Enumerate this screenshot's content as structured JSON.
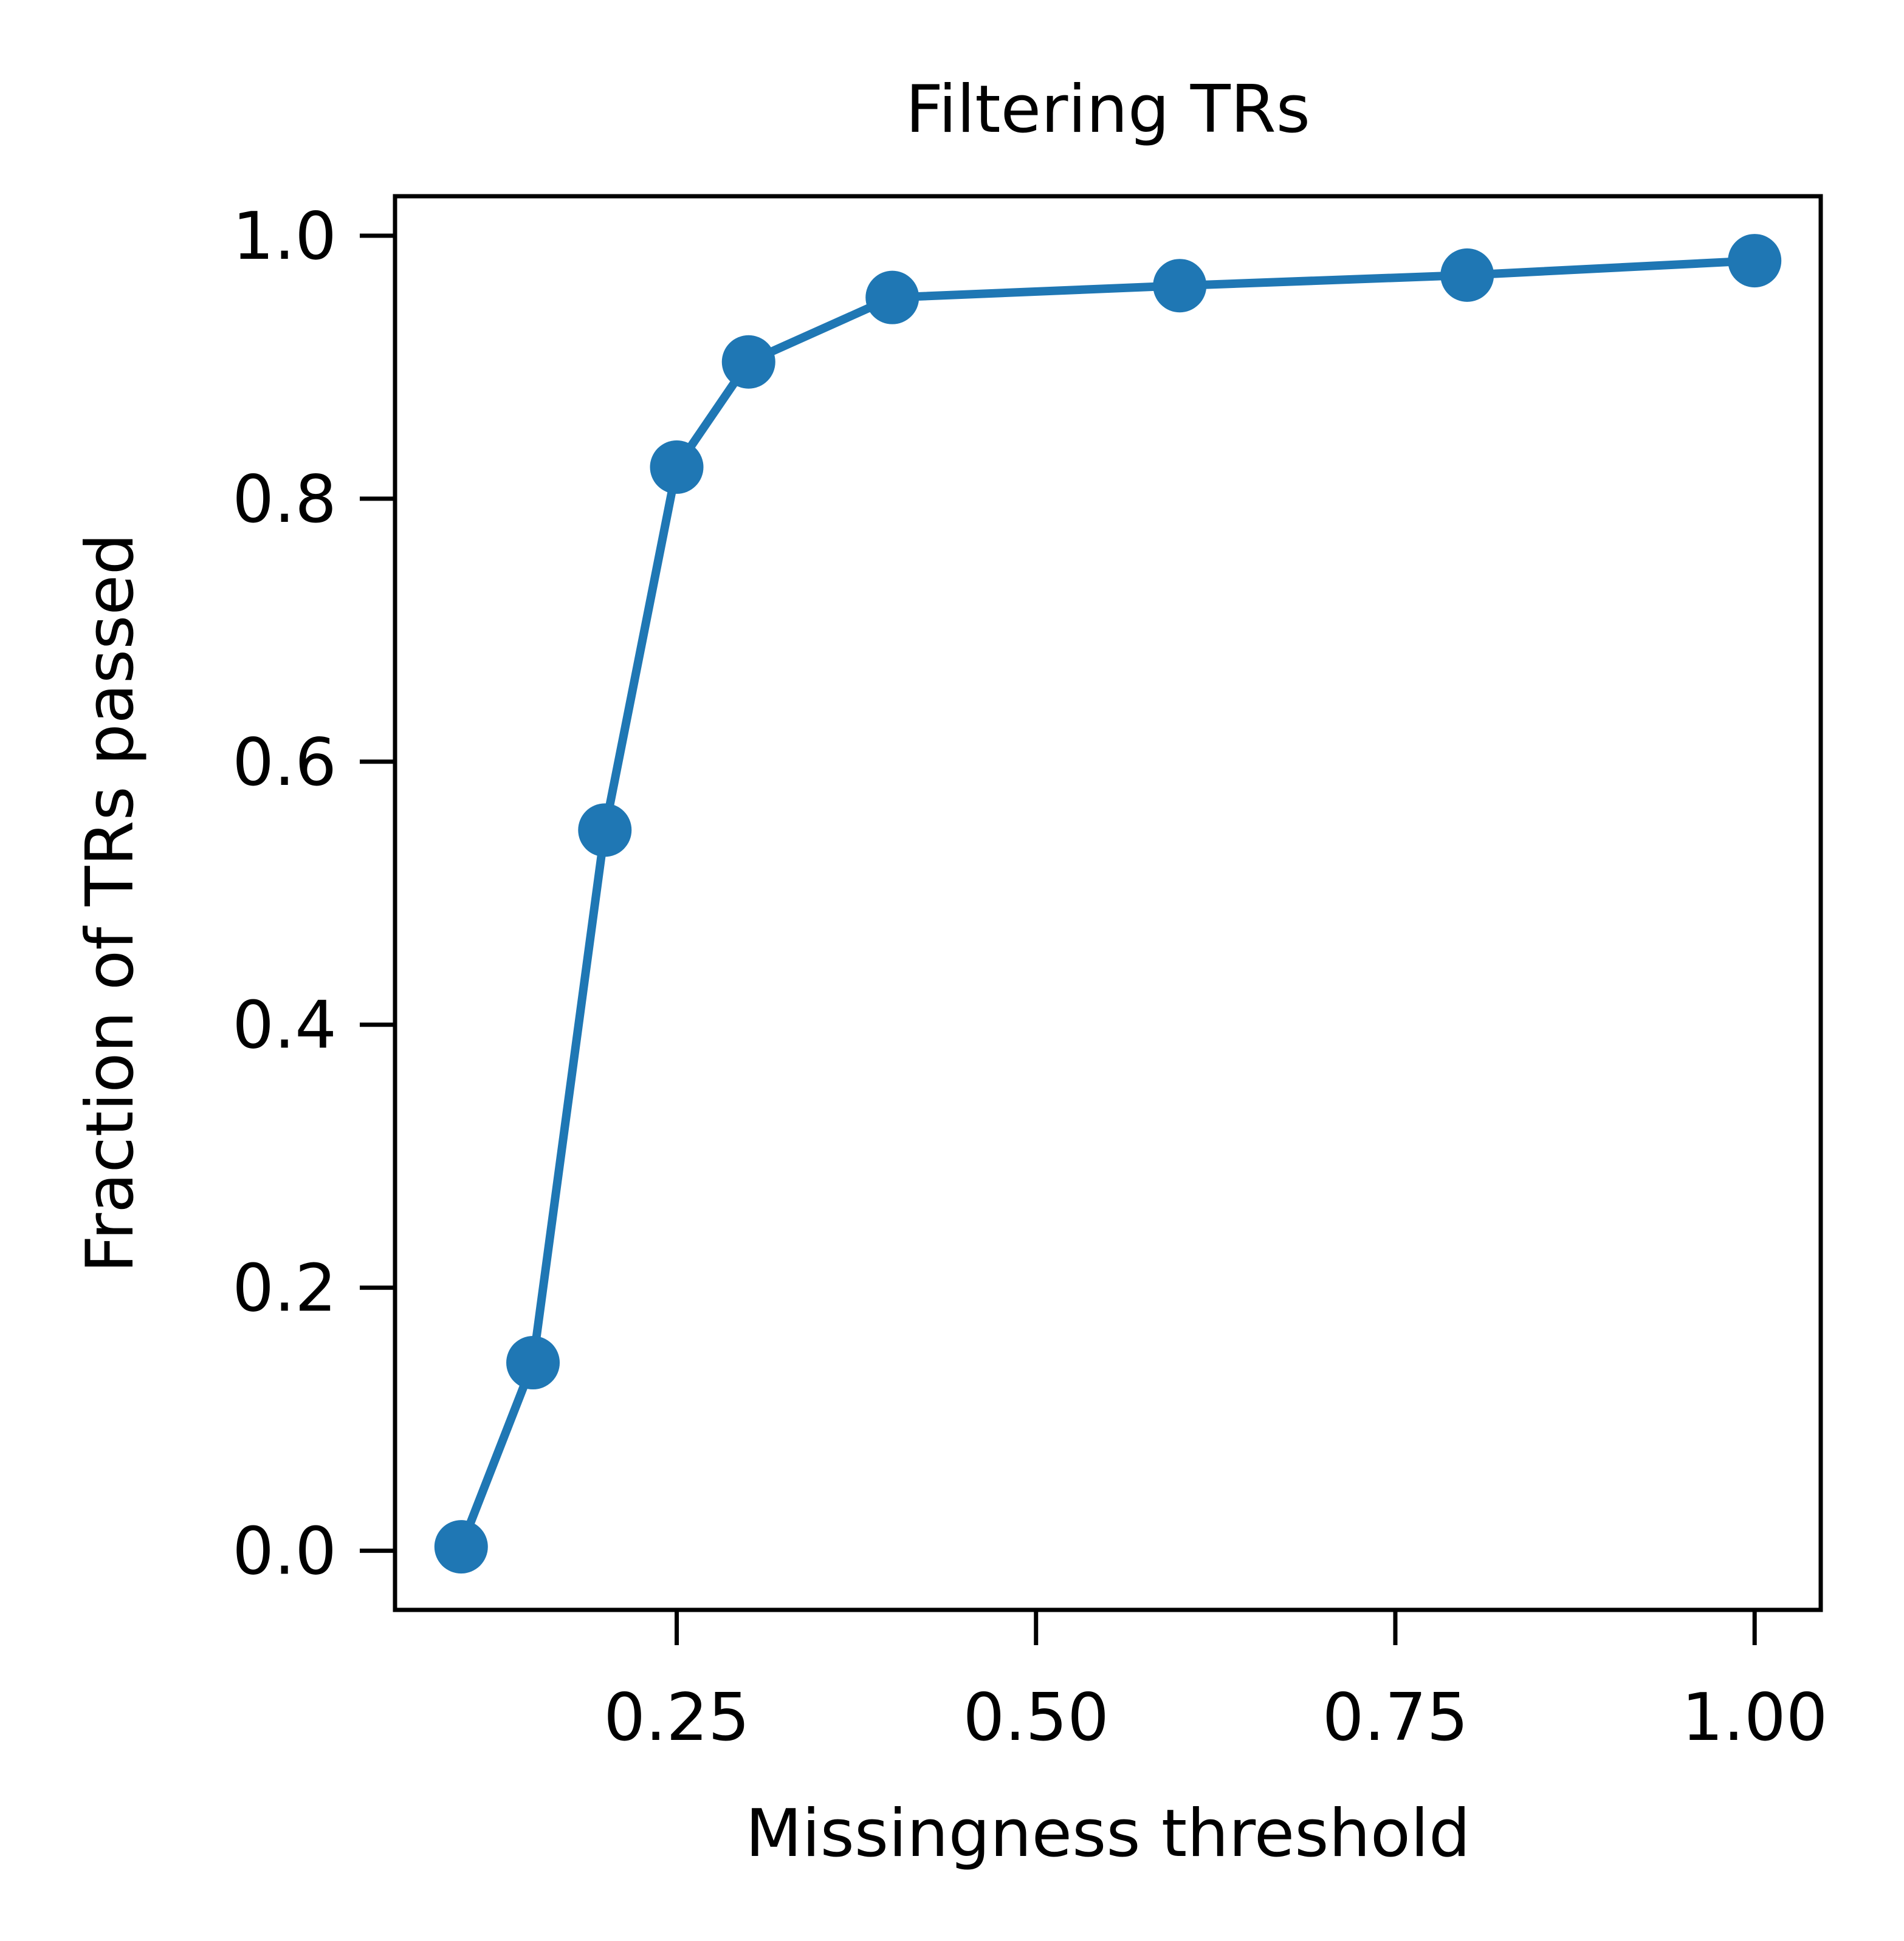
{
  "chart_data": {
    "type": "line",
    "title": "Filtering TRs",
    "xlabel": "Missingness threshold",
    "ylabel": "Fraction of TRs passed",
    "xlim": [
      0.054,
      1.046
    ],
    "ylim": [
      -0.045,
      1.03
    ],
    "x_ticks": [
      0.25,
      0.5,
      0.75,
      1.0
    ],
    "x_tick_labels": [
      "0.25",
      "0.50",
      "0.75",
      "1.00"
    ],
    "y_ticks": [
      0.0,
      0.2,
      0.4,
      0.6,
      0.8,
      1.0
    ],
    "y_tick_labels": [
      "0.0",
      "0.2",
      "0.4",
      "0.6",
      "0.8",
      "1.0"
    ],
    "grid": false,
    "series": [
      {
        "x": [
          0.1,
          0.15,
          0.2,
          0.25,
          0.3,
          0.4,
          0.6,
          0.8,
          1.0
        ],
        "y": [
          0.003,
          0.143,
          0.548,
          0.824,
          0.904,
          0.953,
          0.962,
          0.97,
          0.981
        ],
        "color": "#1f77b4",
        "marker": "circle"
      }
    ]
  }
}
